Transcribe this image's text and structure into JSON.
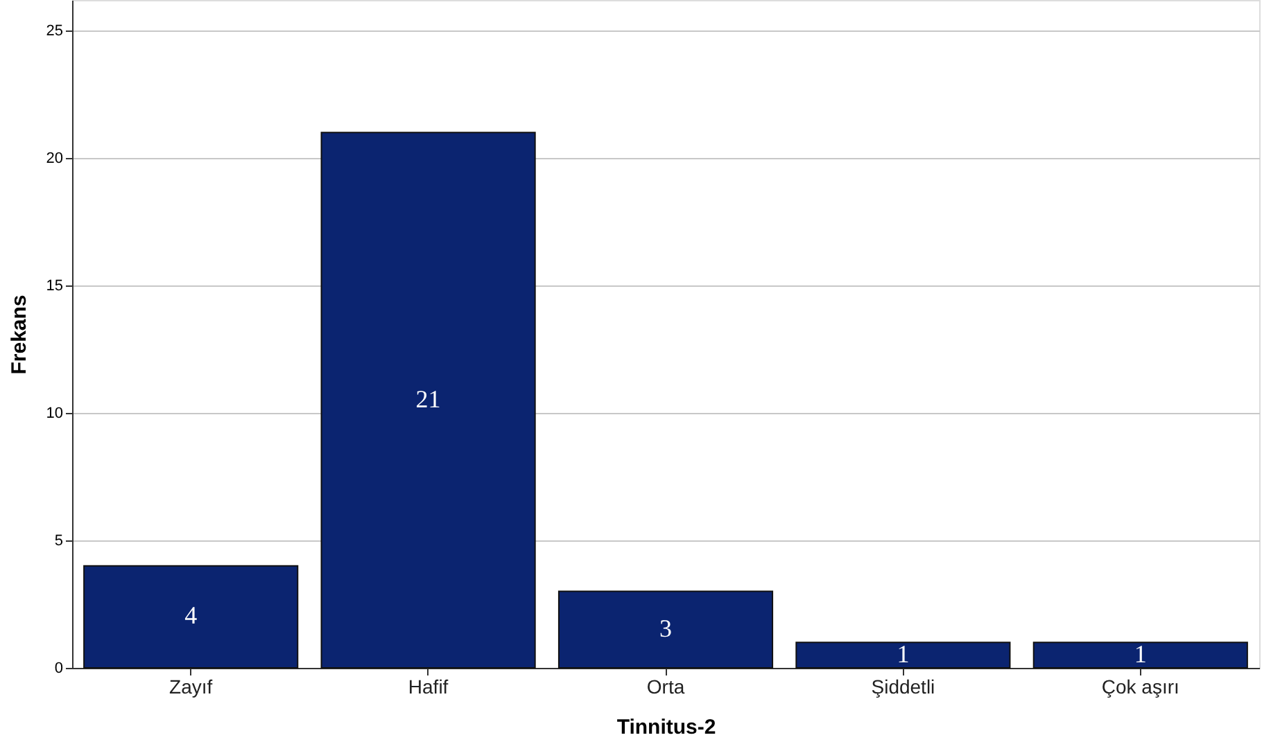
{
  "chart_data": {
    "type": "bar",
    "xlabel": "Tinnitus-2",
    "ylabel": "Frekans",
    "categories": [
      "Zayıf",
      "Hafif",
      "Orta",
      "Şiddetli",
      "Çok aşırı"
    ],
    "values": [
      4,
      21,
      3,
      1,
      1
    ],
    "color": "#0b2470",
    "ylim": [
      0,
      26.2
    ],
    "yticks": [
      0,
      5,
      10,
      15,
      20,
      25
    ],
    "grid": "y",
    "data_labels": true
  }
}
